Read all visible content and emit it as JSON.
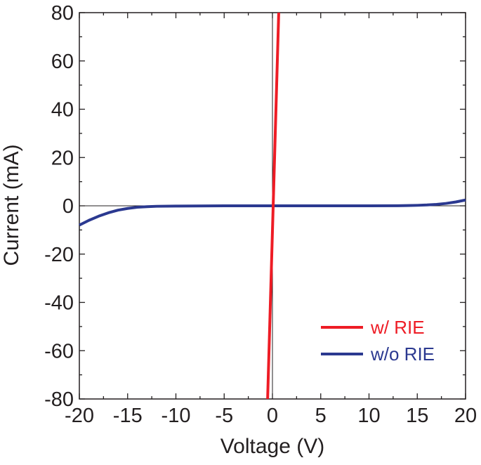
{
  "chart_data": {
    "type": "line",
    "title": "",
    "xlabel": "Voltage (V)",
    "ylabel": "Current (mA)",
    "xlim": [
      -20,
      20
    ],
    "ylim": [
      -80,
      80
    ],
    "xticks": [
      -20,
      -15,
      -10,
      -5,
      0,
      5,
      10,
      15,
      20
    ],
    "yticks": [
      -80,
      -60,
      -40,
      -20,
      0,
      20,
      40,
      60,
      80
    ],
    "grid": false,
    "legend_position": "bottom-right",
    "series": [
      {
        "name": "w/ RIE",
        "color": "#ee1c25",
        "x": [
          -0.5,
          0.65
        ],
        "y": [
          -80,
          80
        ]
      },
      {
        "name": "w/o RIE",
        "color": "#2b3990",
        "x": [
          -20,
          -19,
          -18,
          -17,
          -16,
          -15,
          -14,
          -13,
          -12,
          -10,
          -5,
          0,
          5,
          10,
          13,
          14,
          15,
          16,
          17,
          18,
          19,
          20
        ],
        "y": [
          -8,
          -6,
          -4.3,
          -2.9,
          -1.8,
          -1.1,
          -0.6,
          -0.35,
          -0.2,
          -0.1,
          0,
          0,
          0,
          0,
          0.05,
          0.1,
          0.2,
          0.35,
          0.6,
          1.0,
          1.6,
          2.4
        ]
      }
    ]
  }
}
